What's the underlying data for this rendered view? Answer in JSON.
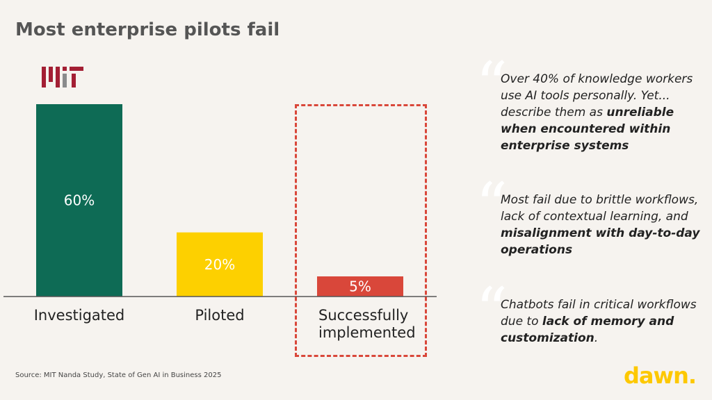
{
  "title": "Most enterprise pilots fail",
  "logo_text": "MIT",
  "chart_data": {
    "type": "bar",
    "categories": [
      "Investigated",
      "Piloted",
      "Successfully implemented"
    ],
    "values": [
      60,
      20,
      5
    ],
    "labels": [
      "60%",
      "20%",
      "5%"
    ],
    "colors": [
      "#0e6b55",
      "#fdd000",
      "#d9473a"
    ],
    "ylim": [
      0,
      60
    ],
    "highlight": "Successfully implemented"
  },
  "quotes": [
    {
      "normal": "Over 40% of knowledge workers use AI tools personally. Yet... describe them as ",
      "bold": "unreliable when encountered within enterprise systems",
      "tail": ""
    },
    {
      "normal": "Most fail due to brittle workflows, lack of contextual learning, and ",
      "bold": "misalignment with day-to-day operations",
      "tail": ""
    },
    {
      "normal": "Chatbots fail in critical workflows due to ",
      "bold": "lack of memory and customization",
      "tail": "."
    }
  ],
  "source": "Source: MIT Nanda Study, State of Gen AI in Business 2025",
  "brand": "dawn."
}
